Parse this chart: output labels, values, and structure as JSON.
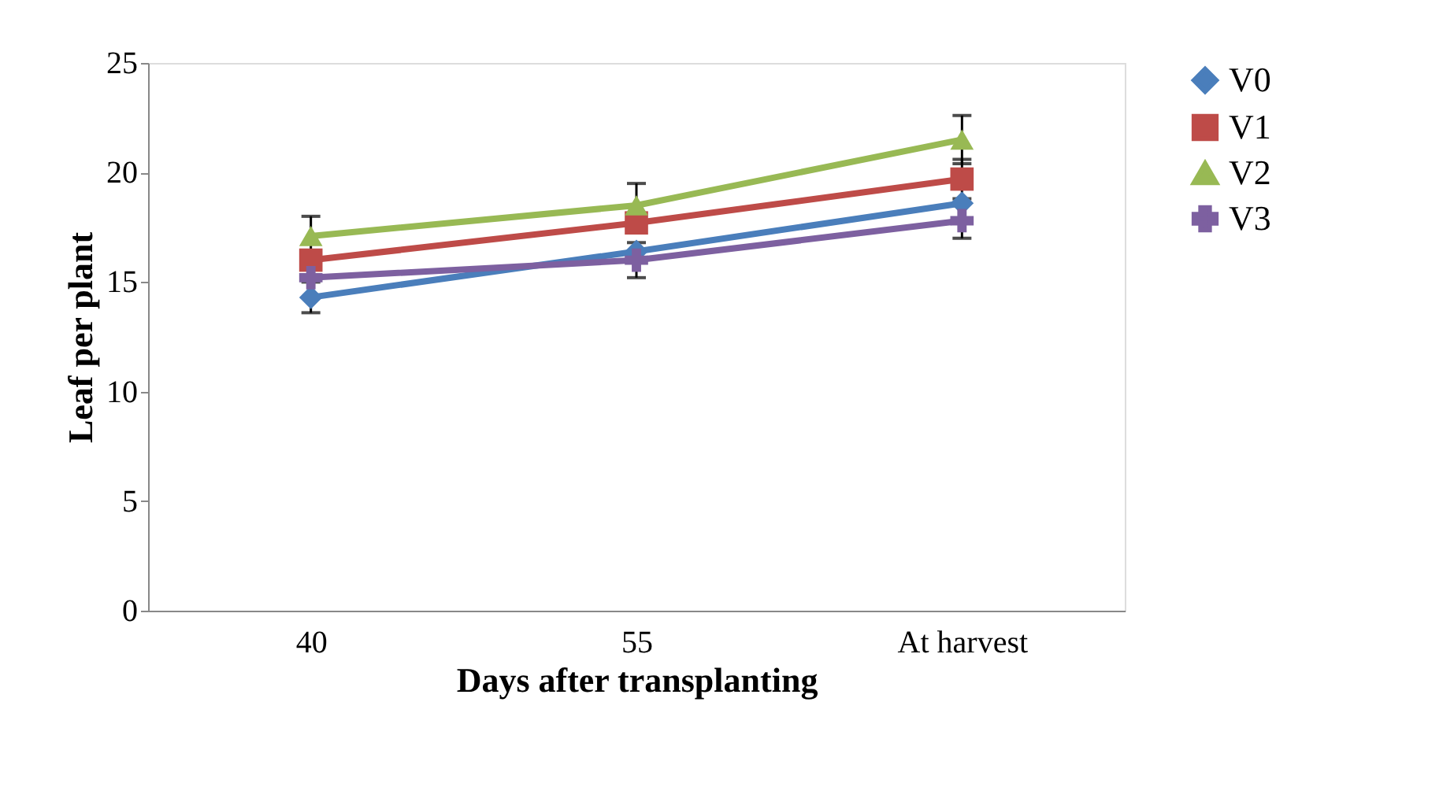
{
  "chart_data": {
    "type": "line",
    "xlabel": "Days after transplanting",
    "ylabel": "Leaf per plant",
    "categories": [
      "40",
      "55",
      "At harvest"
    ],
    "series": [
      {
        "name": "V0",
        "color": "#4a7ebb",
        "marker": "diamond",
        "values": [
          14.3,
          16.4,
          18.6
        ],
        "errors": [
          0.7,
          null,
          null
        ]
      },
      {
        "name": "V1",
        "color": "#be4b48",
        "marker": "square",
        "values": [
          16.0,
          17.7,
          19.7
        ],
        "errors": [
          null,
          null,
          0.9
        ]
      },
      {
        "name": "V2",
        "color": "#98b954",
        "marker": "triangle",
        "values": [
          17.1,
          18.5,
          21.5
        ],
        "errors": [
          0.9,
          1.0,
          1.1
        ]
      },
      {
        "name": "V3",
        "color": "#7d60a0",
        "marker": "cross",
        "values": [
          15.2,
          16.0,
          17.8
        ],
        "errors": [
          null,
          0.8,
          0.8
        ]
      }
    ],
    "ylim": [
      0,
      25
    ],
    "yticks": [
      0,
      5,
      10,
      15,
      20,
      25
    ],
    "grid": false,
    "legend": "right",
    "line_style": "solid"
  }
}
